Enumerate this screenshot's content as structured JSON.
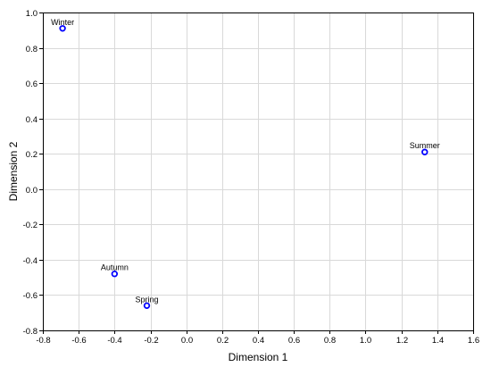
{
  "chart_data": {
    "type": "scatter",
    "xlabel": "Dimension 1",
    "ylabel": "Dimension 2",
    "xlim": [
      -0.8,
      1.6
    ],
    "ylim": [
      -0.8,
      1.0
    ],
    "x_ticks": [
      -0.8,
      -0.6,
      -0.4,
      -0.2,
      0.0,
      0.2,
      0.4,
      0.6,
      0.8,
      1.0,
      1.2,
      1.4,
      1.6
    ],
    "x_tick_labels": [
      "-0.8",
      "-0.6",
      "-0.4",
      "-0.2",
      "0.0",
      "0.2",
      "0.4",
      "0.6",
      "0.8",
      "1.0",
      "1.2",
      "1.4",
      "1.6"
    ],
    "y_ticks": [
      -0.8,
      -0.6,
      -0.4,
      -0.2,
      0.0,
      0.2,
      0.4,
      0.6,
      0.8,
      1.0
    ],
    "y_tick_labels": [
      "-0.8",
      "-0.6",
      "-0.4",
      "-0.2",
      "0.0",
      "0.2",
      "0.4",
      "0.6",
      "0.8",
      "1.0"
    ],
    "grid": true,
    "points": [
      {
        "label": "Winter",
        "x": -0.69,
        "y": 0.91
      },
      {
        "label": "Summer",
        "x": 1.33,
        "y": 0.21
      },
      {
        "label": "Autumn",
        "x": -0.4,
        "y": -0.48
      },
      {
        "label": "Spring",
        "x": -0.22,
        "y": -0.66
      }
    ],
    "marker_color": "#0000ff"
  }
}
